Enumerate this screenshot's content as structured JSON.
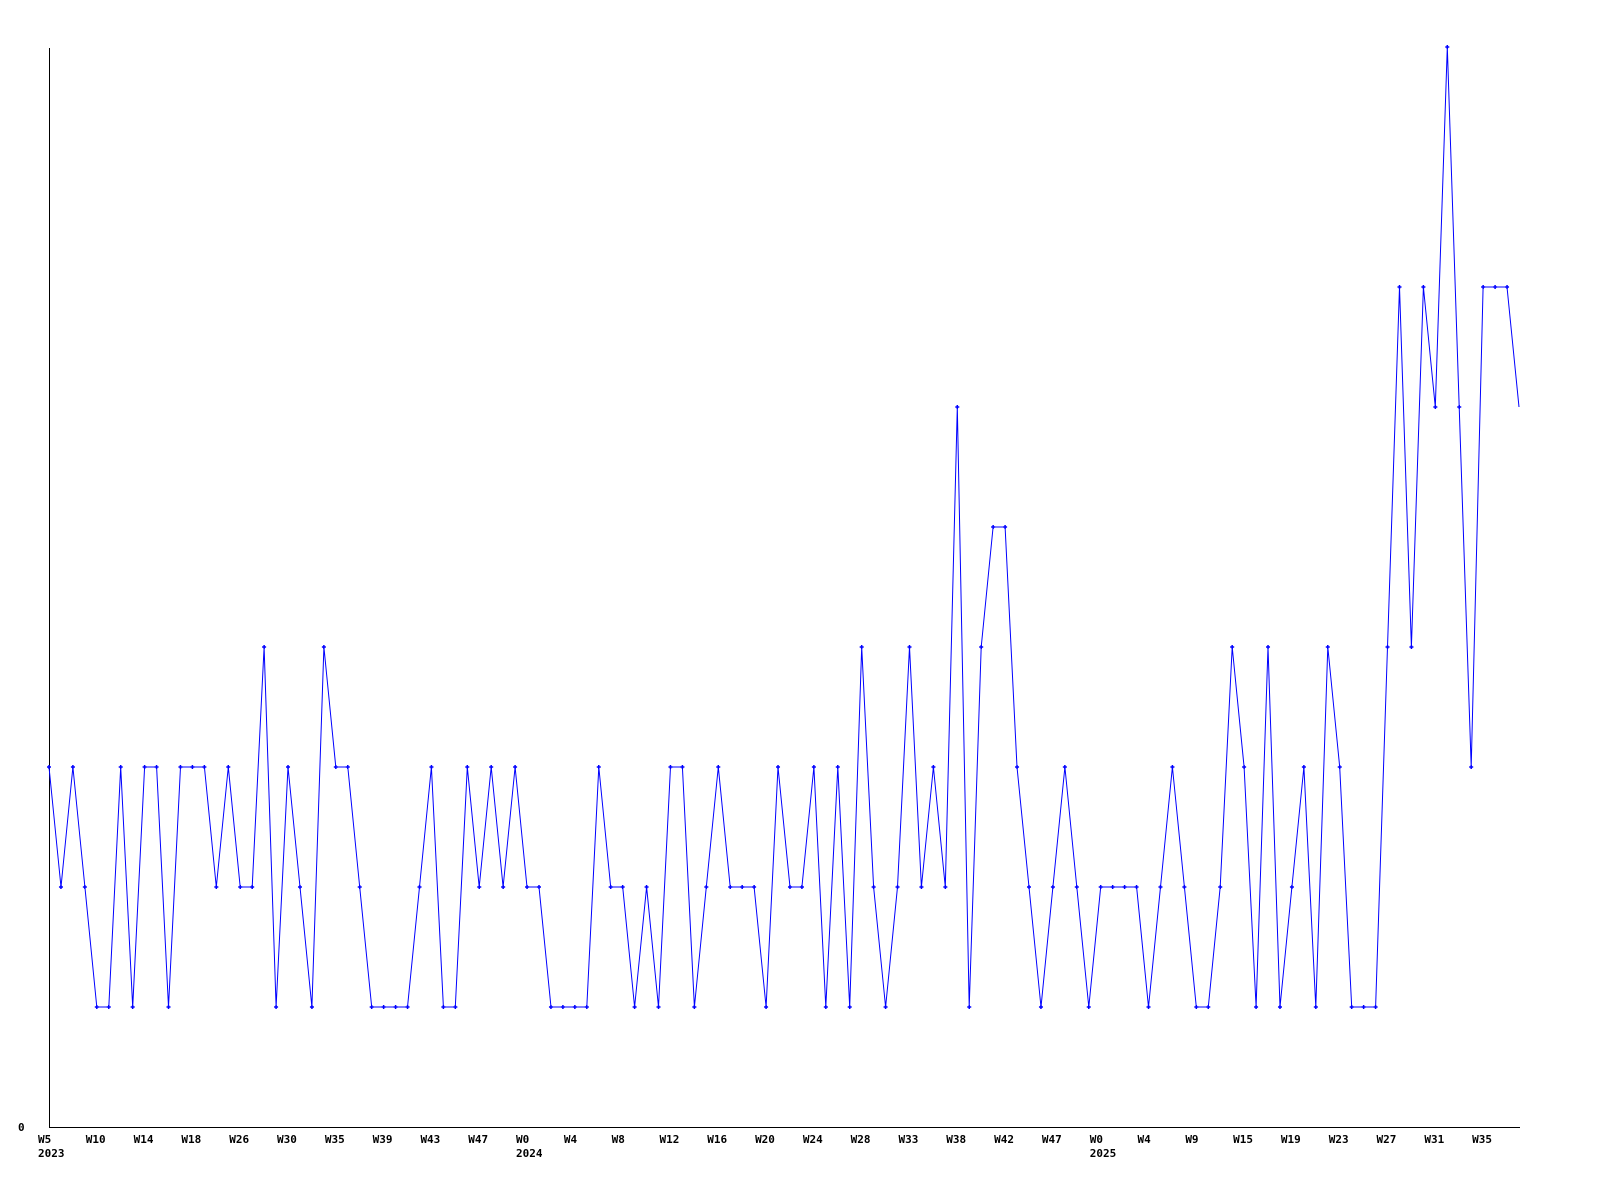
{
  "chart_data": {
    "type": "line",
    "title": "",
    "xlabel": "",
    "ylabel": "",
    "ylim": [
      0,
      9
    ],
    "y_ticks": [
      "0"
    ],
    "grid": false,
    "line_color": "#0000ff",
    "axis_color": "#000000",
    "x_tick_labels": [
      "W5",
      "W10",
      "W14",
      "W18",
      "W26",
      "W30",
      "W35",
      "W39",
      "W43",
      "W47",
      "W0",
      "W4",
      "W8",
      "W12",
      "W16",
      "W20",
      "W24",
      "W28",
      "W33",
      "W38",
      "W42",
      "W47",
      "W0",
      "W4",
      "W9",
      "W15",
      "W19",
      "W23",
      "W27",
      "W31",
      "W35"
    ],
    "x_tick_every": 4,
    "year_labels": [
      {
        "label": "2023",
        "tick_index": 0
      },
      {
        "label": "2024",
        "tick_index": 10
      },
      {
        "label": "2025",
        "tick_index": 22
      }
    ],
    "values": [
      3,
      2,
      3,
      2,
      1,
      1,
      3,
      1,
      3,
      3,
      1,
      3,
      3,
      3,
      2,
      3,
      2,
      2,
      4,
      1,
      3,
      2,
      1,
      4,
      3,
      3,
      2,
      1,
      1,
      1,
      1,
      2,
      3,
      1,
      1,
      3,
      2,
      3,
      2,
      3,
      2,
      2,
      1,
      1,
      1,
      1,
      3,
      2,
      2,
      1,
      2,
      1,
      3,
      3,
      1,
      2,
      3,
      2,
      2,
      2,
      1,
      3,
      2,
      2,
      3,
      1,
      3,
      1,
      4,
      2,
      1,
      2,
      4,
      2,
      3,
      2,
      6,
      1,
      4,
      5,
      5,
      3,
      2,
      1,
      2,
      3,
      2,
      1,
      2,
      2,
      2,
      2,
      1,
      2,
      3,
      2,
      1,
      1,
      2,
      4,
      3,
      1,
      4,
      1,
      2,
      3,
      1,
      4,
      3,
      1,
      1,
      1,
      4,
      7,
      4,
      7,
      6,
      9,
      6,
      3,
      7,
      7,
      7,
      6
    ]
  }
}
